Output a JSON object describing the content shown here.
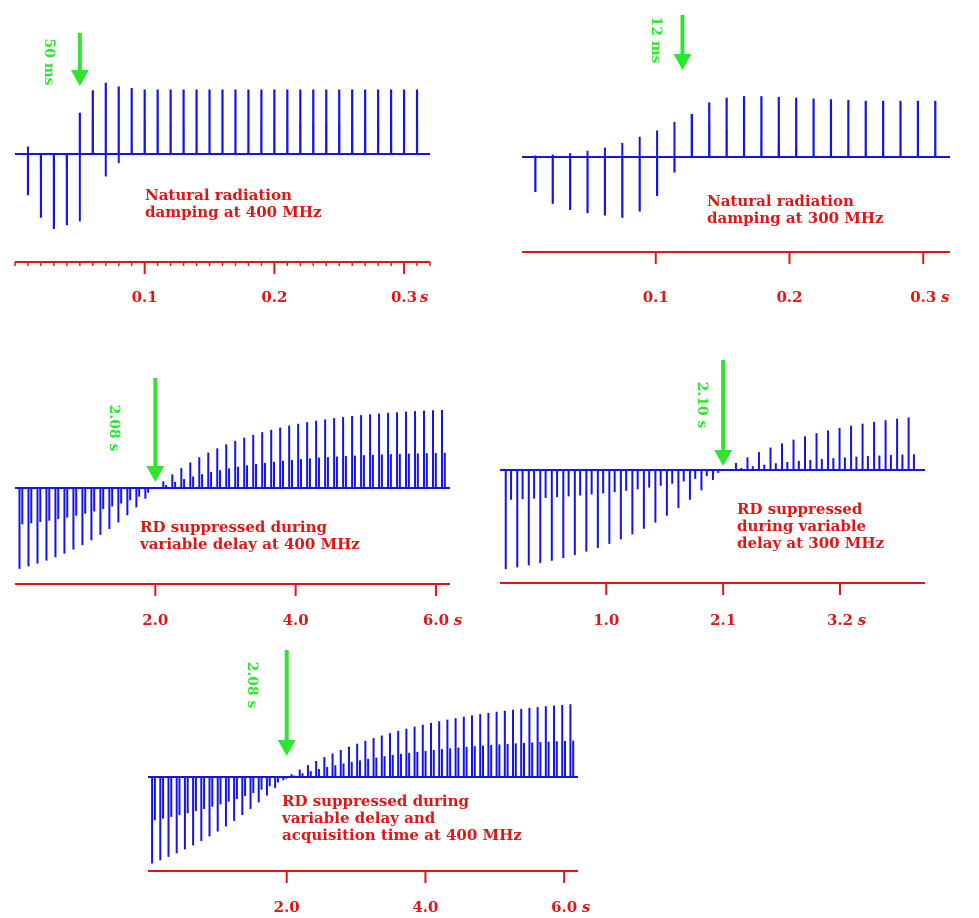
{
  "colors": {
    "trace": "#1414e6",
    "axis": "#e01616",
    "text": "#e01616",
    "arrow": "#2ee62e"
  },
  "chart_data": [
    {
      "id": "p1",
      "type": "line",
      "xlabel": "s",
      "xlim": [
        0,
        0.32
      ],
      "xticks": [
        0.1,
        0.2,
        0.3
      ],
      "xtick_labels": [
        "0.1",
        "0.2",
        "0.3"
      ],
      "minor_ticks": 32,
      "ylim": [
        -1,
        1
      ],
      "annotation_lines": [
        "Natural radiation",
        "damping at 400 MHz"
      ],
      "arrow": {
        "x": 0.05,
        "label": "50 ms"
      },
      "series": [
        {
          "x": [
            0.01,
            0.02,
            0.03,
            0.04,
            0.05,
            0.06,
            0.07,
            0.08,
            0.09,
            0.1,
            0.11,
            0.12,
            0.13,
            0.14,
            0.15,
            0.16,
            0.17,
            0.18,
            0.19,
            0.2,
            0.21,
            0.22,
            0.23,
            0.24,
            0.25,
            0.26,
            0.27,
            0.28,
            0.29,
            0.3,
            0.31
          ],
          "y": [
            -0.55,
            -0.85,
            -1.0,
            -0.95,
            0.55,
            0.85,
            0.95,
            0.9,
            0.88,
            0.86,
            0.86,
            0.86,
            0.86,
            0.86,
            0.86,
            0.86,
            0.86,
            0.86,
            0.86,
            0.86,
            0.86,
            0.86,
            0.86,
            0.86,
            0.86,
            0.86,
            0.86,
            0.86,
            0.86,
            0.86,
            0.86
          ]
        },
        {
          "x": [
            0.01,
            0.02,
            0.03,
            0.04,
            0.05,
            0.06,
            0.07,
            0.08,
            0.09,
            0.1,
            0.11,
            0.12,
            0.13,
            0.14,
            0.15,
            0.16,
            0.17,
            0.18,
            0.19,
            0.2,
            0.21,
            0.22,
            0.23,
            0.24,
            0.25,
            0.26,
            0.27,
            0.28,
            0.29,
            0.3,
            0.31
          ],
          "y": [
            0.1,
            -0.12,
            -0.12,
            -0.15,
            -0.9,
            0.45,
            -0.3,
            -0.12,
            0.05,
            0.42,
            0.42,
            0.42,
            0.42,
            0.42,
            0.42,
            0.42,
            0.42,
            0.42,
            0.42,
            0.42,
            0.42,
            0.42,
            0.42,
            0.42,
            0.42,
            0.42,
            0.42,
            0.42,
            0.42,
            0.42,
            0.42
          ]
        }
      ]
    },
    {
      "id": "p2",
      "type": "line",
      "xlabel": "s",
      "xlim": [
        0,
        0.32
      ],
      "xticks": [
        0.1,
        0.2,
        0.3
      ],
      "xtick_labels": [
        "0.1",
        "0.2",
        "0.3"
      ],
      "minor_ticks": 0,
      "ylim": [
        -1,
        1
      ],
      "annotation_lines": [
        "Natural radiation",
        "damping at 300 MHz"
      ],
      "arrow": {
        "x": 0.12,
        "label": "12 ms"
      },
      "series": [
        {
          "x": [
            0.01,
            0.023,
            0.036,
            0.049,
            0.062,
            0.075,
            0.088,
            0.101,
            0.114,
            0.127,
            0.14,
            0.153,
            0.166,
            0.179,
            0.192,
            0.205,
            0.218,
            0.231,
            0.244,
            0.257,
            0.27,
            0.283,
            0.296,
            0.309
          ],
          "y": [
            -0.45,
            -0.6,
            -0.68,
            -0.72,
            -0.75,
            -0.78,
            -0.7,
            -0.5,
            -0.2,
            0.55,
            0.7,
            0.76,
            0.78,
            0.78,
            0.77,
            0.76,
            0.75,
            0.74,
            0.73,
            0.72,
            0.72,
            0.72,
            0.72,
            0.72
          ]
        },
        {
          "x": [
            0.01,
            0.023,
            0.036,
            0.049,
            0.062,
            0.075,
            0.088,
            0.101,
            0.114,
            0.127,
            0.14,
            0.153,
            0.166,
            0.179,
            0.192,
            0.205,
            0.218,
            0.231,
            0.244,
            0.257,
            0.27,
            0.283,
            0.296,
            0.309
          ],
          "y": [
            0.02,
            0.03,
            0.05,
            0.08,
            0.12,
            0.18,
            0.26,
            0.34,
            0.45,
            0.55,
            0.45,
            0.35,
            0.28,
            0.22,
            0.18,
            0.14,
            0.12,
            0.1,
            0.08,
            0.06,
            0.05,
            0.04,
            0.04,
            0.03
          ]
        }
      ]
    },
    {
      "id": "p3",
      "type": "line",
      "xlabel": "s",
      "xlim": [
        0,
        6.2
      ],
      "xticks": [
        2.0,
        4.0,
        6.0
      ],
      "xtick_labels": [
        "2.0",
        "4.0",
        "6.0"
      ],
      "minor_ticks": 0,
      "ylim": [
        -1,
        1
      ],
      "annotation_lines": [
        "RD suppressed during",
        "variable delay at 400 MHz"
      ],
      "arrow": {
        "x": 2.0,
        "label": "2.08 s"
      }
    },
    {
      "id": "p4",
      "type": "line",
      "xlabel": "s",
      "xlim": [
        0,
        4.0
      ],
      "xticks": [
        1.0,
        2.1,
        3.2
      ],
      "xtick_labels": [
        "1.0",
        "2.1",
        "3.2"
      ],
      "minor_ticks": 0,
      "ylim": [
        -1,
        1
      ],
      "annotation_lines": [
        "RD suppressed",
        "during variable",
        "delay at 300 MHz"
      ],
      "arrow": {
        "x": 2.1,
        "label": "2.10 s"
      }
    },
    {
      "id": "p5",
      "type": "line",
      "xlabel": "s",
      "xlim": [
        0,
        6.2
      ],
      "xticks": [
        2.0,
        4.0,
        6.0
      ],
      "xtick_labels": [
        "2.0",
        "4.0",
        "6.0"
      ],
      "minor_ticks": 0,
      "ylim": [
        -1,
        1
      ],
      "annotation_lines": [
        "RD suppressed during",
        "variable delay and",
        "acquisition time at 400 MHz"
      ],
      "arrow": {
        "x": 2.0,
        "label": "2.08 s"
      }
    }
  ]
}
